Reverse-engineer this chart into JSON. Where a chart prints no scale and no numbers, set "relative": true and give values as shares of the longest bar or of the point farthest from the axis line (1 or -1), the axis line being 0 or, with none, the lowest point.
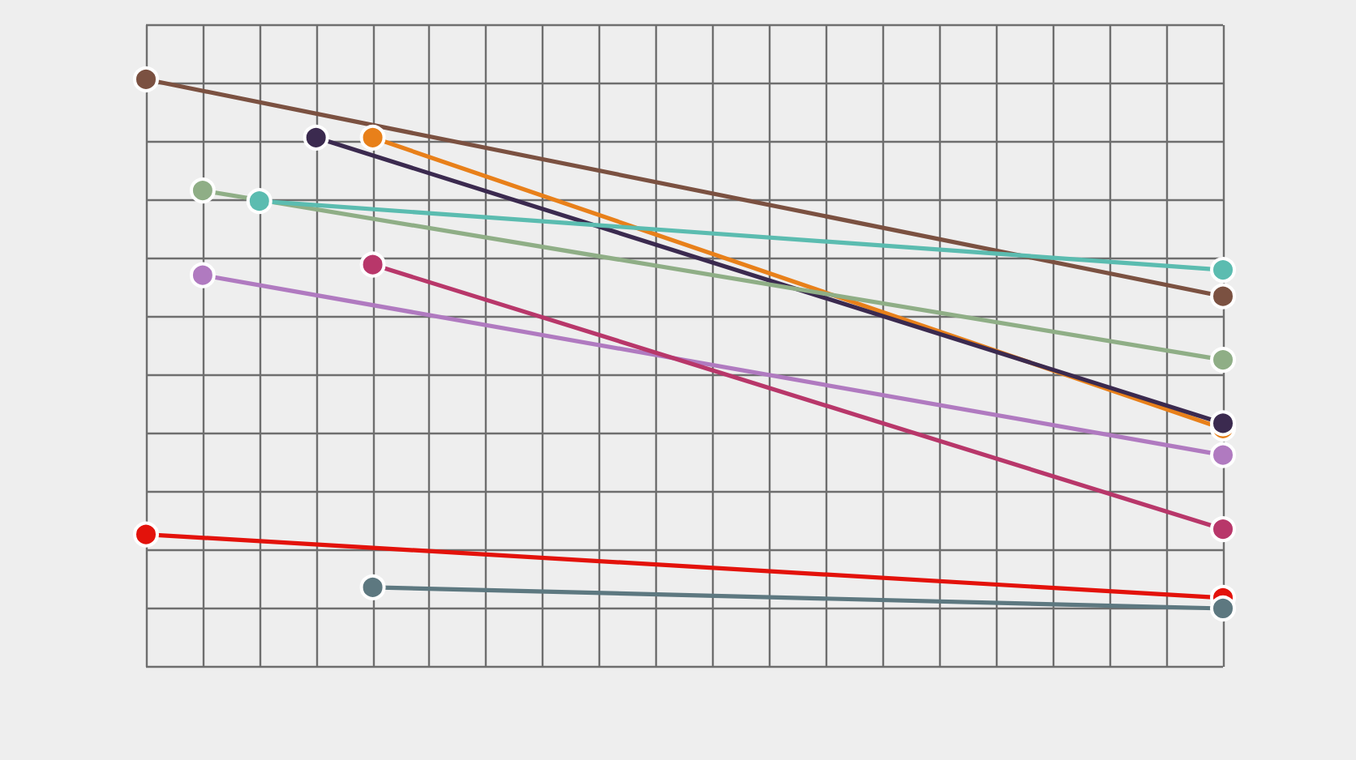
{
  "chart_data": {
    "type": "line",
    "relative": true,
    "grid": true,
    "marker": "circle",
    "line_style": "solid",
    "categories": [
      null,
      null,
      null,
      null,
      null,
      null,
      null,
      null,
      null,
      null,
      null,
      null,
      null,
      null,
      null,
      null,
      null,
      null,
      null,
      null
    ],
    "series": [
      {
        "color": "#7b5141",
        "values": [
          1.0,
          null,
          null,
          null,
          null,
          null,
          null,
          null,
          null,
          null,
          null,
          null,
          null,
          null,
          null,
          null,
          null,
          null,
          null,
          0.59
        ]
      },
      {
        "color": "#e8801a",
        "values": [
          null,
          null,
          null,
          null,
          0.89,
          null,
          null,
          null,
          null,
          null,
          null,
          null,
          null,
          null,
          null,
          null,
          null,
          null,
          null,
          0.34
        ]
      },
      {
        "color": "#3b2a4f",
        "values": [
          null,
          null,
          null,
          0.89,
          null,
          null,
          null,
          null,
          null,
          null,
          null,
          null,
          null,
          null,
          null,
          null,
          null,
          null,
          null,
          0.35
        ]
      },
      {
        "color": "#8fae86",
        "values": [
          null,
          0.79,
          null,
          null,
          null,
          null,
          null,
          null,
          null,
          null,
          null,
          null,
          null,
          null,
          null,
          null,
          null,
          null,
          null,
          0.47
        ]
      },
      {
        "color": "#5bbcb0",
        "values": [
          null,
          null,
          0.77,
          null,
          null,
          null,
          null,
          null,
          null,
          null,
          null,
          null,
          null,
          null,
          null,
          null,
          null,
          null,
          null,
          0.64
        ]
      },
      {
        "color": "#b07ac0",
        "values": [
          null,
          0.63,
          null,
          null,
          null,
          null,
          null,
          null,
          null,
          null,
          null,
          null,
          null,
          null,
          null,
          null,
          null,
          null,
          null,
          0.29
        ]
      },
      {
        "color": "#b8376a",
        "values": [
          null,
          null,
          null,
          null,
          0.65,
          null,
          null,
          null,
          null,
          null,
          null,
          null,
          null,
          null,
          null,
          null,
          null,
          null,
          null,
          0.15
        ]
      },
      {
        "color": "#e3120b",
        "values": [
          0.14,
          null,
          null,
          null,
          null,
          null,
          null,
          null,
          null,
          null,
          null,
          null,
          null,
          null,
          null,
          null,
          null,
          null,
          null,
          0.02
        ]
      },
      {
        "color": "#5d7880",
        "values": [
          null,
          null,
          null,
          null,
          0.04,
          null,
          null,
          null,
          null,
          null,
          null,
          null,
          null,
          null,
          null,
          null,
          null,
          null,
          null,
          0.0
        ]
      }
    ]
  }
}
